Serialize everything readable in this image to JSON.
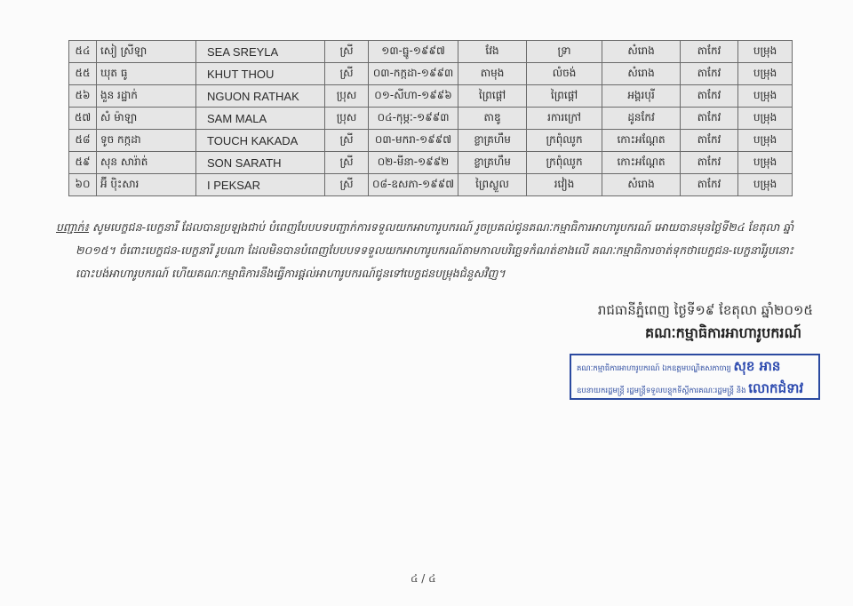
{
  "table": {
    "rows": [
      {
        "no": "៥៤",
        "name_kh": "សៀ ស្រីឡា",
        "name_en": "SEA SREYLA",
        "sex": "ស្រី",
        "dob": "១៣-ធ្នូ-១៩៩៧",
        "village": "វែង",
        "commune": "ទ្រា",
        "district": "សំរោង",
        "province": "តាកែវ",
        "status": "បម្រុង"
      },
      {
        "no": "៥៥",
        "name_kh": "ឃុត ធូ",
        "name_en": "KHUT THOU",
        "sex": "ស្រី",
        "dob": "០៣-កក្កដា-១៩៩៣",
        "village": "តាមុង",
        "commune": "លំចង់",
        "district": "សំរោង",
        "province": "តាកែវ",
        "status": "បម្រុង"
      },
      {
        "no": "៥៦",
        "name_kh": "ងួន រដ្ឋាក់",
        "name_en": "NGUON RATHAK",
        "sex": "ប្រុស",
        "dob": "០១-សីហា-១៩៩៦",
        "village": "ព្រៃផ្តៅ",
        "commune": "ព្រៃផ្តៅ",
        "district": "អង្គរបុរី",
        "province": "តាកែវ",
        "status": "បម្រុង"
      },
      {
        "no": "៥៧",
        "name_kh": "សំ ម៉ាឡា",
        "name_en": "SAM MALA",
        "sex": "ប្រុស",
        "dob": "០៤-កុម្ភៈ-១៩៩៣",
        "village": "តាឌូ",
        "commune": "រការក្រៅ",
        "district": "ដូនកែវ",
        "province": "តាកែវ",
        "status": "បម្រុង"
      },
      {
        "no": "៥៨",
        "name_kh": "ទូច កក្កដា",
        "name_en": "TOUCH KAKADA",
        "sex": "ស្រី",
        "dob": "០៣-មករា-១៩៩៧",
        "village": "ខ្លាគ្រហឹម",
        "commune": "ក្រពុំឈូក",
        "district": "កោះអណ្តែត",
        "province": "តាកែវ",
        "status": "បម្រុង"
      },
      {
        "no": "៥៩",
        "name_kh": "សុន សារ៉ាត់",
        "name_en": "SON SARATH",
        "sex": "ស្រី",
        "dob": "០២-មីនា-១៩៩២",
        "village": "ខ្លាគ្រហឹម",
        "commune": "ក្រពុំឈូក",
        "district": "កោះអណ្តែត",
        "province": "តាកែវ",
        "status": "បម្រុង"
      },
      {
        "no": "៦០",
        "name_kh": "អ៊ី ប៉ិះសារ",
        "name_en": "I PEKSAR",
        "sex": "ស្រី",
        "dob": "០៨-ឧសភា-១៩៩៧",
        "village": "ព្រៃស្លួល",
        "commune": "រវៀង",
        "district": "សំរោង",
        "province": "តាកែវ",
        "status": "បម្រុង"
      }
    ]
  },
  "note": {
    "label": "បញ្ជាក់៖",
    "line1": "សូមបេក្ខជន-បេក្ខនារី ដែលបានប្រឡងជាប់ បំពេញបែបបទបញ្ជាក់ការទទួលយកអាហារូបករណ៍ រួចប្រគល់ជូនគណៈកម្មាធិការអាហារូបករណ៍ អោយបានមុនថ្ងៃទី២៤ ខែតុលា ឆ្នាំ",
    "line2": "២០១៥។ ចំពោះបេក្ខជន-បេក្ខនារី រូបណា ដែលមិនបានបំពេញបែបបទទទួលយកអាហារូបករណ៍តាមកាលបរិច្ឆេទកំណត់ខាងលើ គណៈកម្មាធិការចាត់ទុកថាបេក្ខជន-បេក្ខនារីរូបនោះ",
    "line3": "បោះបង់អាហារូបករណ៍ ហើយគណៈកម្មាធិការនឹងធ្វើការផ្តល់អាហារូបករណ៍ជូនទៅបេក្ខជនបម្រុងជំនួសវិញ។"
  },
  "signature": {
    "place_date": "រាជធានីភ្នំពេញ ថ្ងៃទី១៩ ខែតុលា ឆ្នាំ២០១៥",
    "committee": "គណៈកម្មាធិការអាហារូបករណ៍",
    "stamp_line1": "គណៈកម្មាធិការអាហារូបករណ៍ ឯកឧត្តមបណ្ឌិតសភាចារ្យ",
    "stamp_name1": "សុខ អាន",
    "stamp_line2": "ឧបនាយករដ្ឋមន្ត្រី រដ្ឋមន្ត្រីទទួលបន្ទុកទីស្តីការគណៈរដ្ឋមន្ត្រី និង",
    "stamp_name2": "លោកជំទាវ",
    "stamp_color": "#2b4aa0"
  },
  "page_number": "៤ / ៤"
}
